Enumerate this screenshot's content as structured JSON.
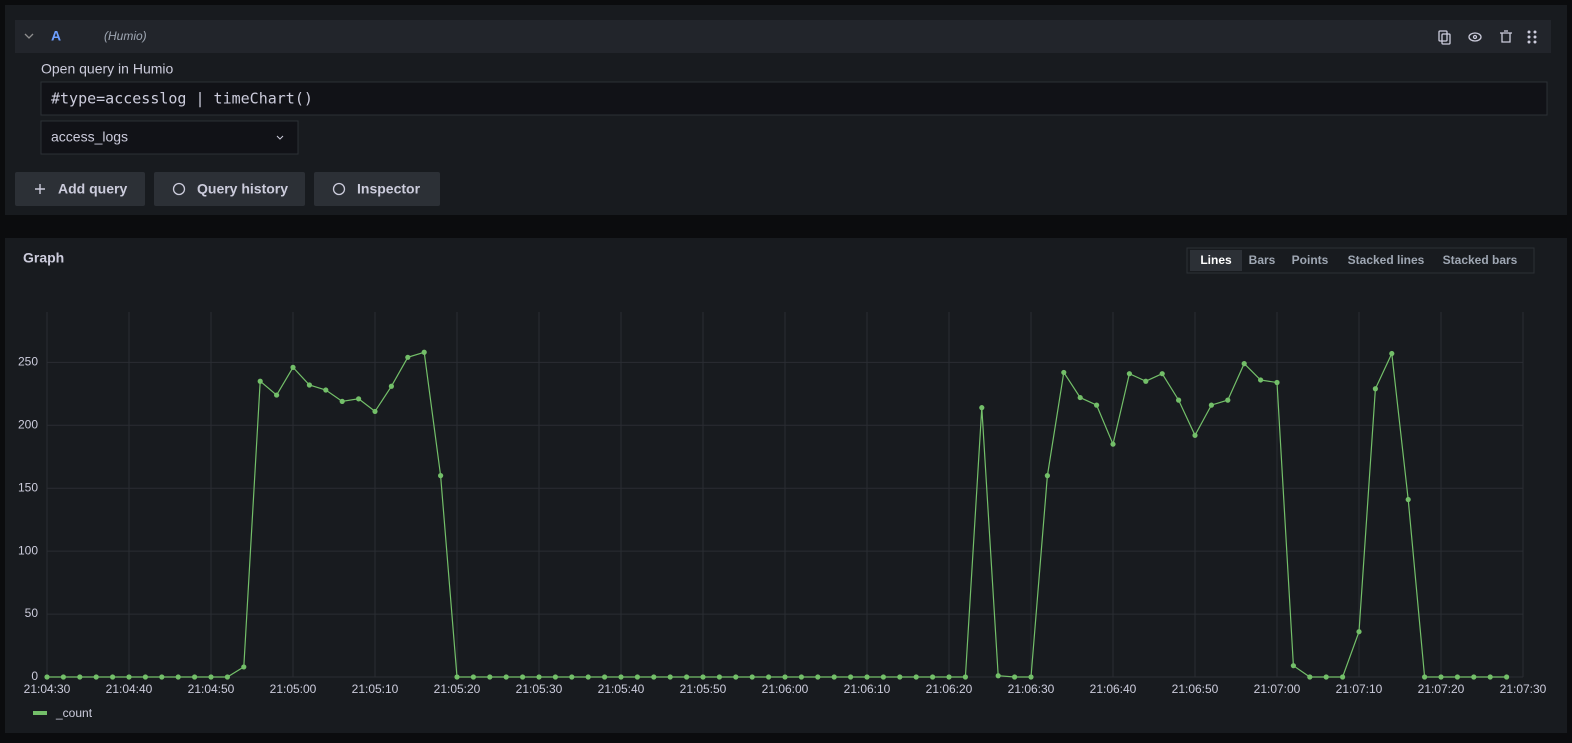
{
  "ui": {
    "query_letter": "A",
    "datasource_name": "(Humio)",
    "open_link": "Open query in Humio",
    "query": "#type=accesslog | timeChart()",
    "repository": "access_logs",
    "buttons": [
      "Add query",
      "Query history",
      "Inspector"
    ],
    "view_modes": [
      "Lines",
      "Bars",
      "Points",
      "Stacked lines",
      "Stacked bars"
    ],
    "active_view_mode": "Lines"
  },
  "chart_data": {
    "type": "line",
    "title": "Graph",
    "x": [
      "21:04:30",
      "21:04:32",
      "21:04:34",
      "21:04:36",
      "21:04:38",
      "21:04:40",
      "21:04:42",
      "21:04:44",
      "21:04:46",
      "21:04:48",
      "21:04:50",
      "21:04:52",
      "21:04:54",
      "21:04:56",
      "21:04:58",
      "21:05:00",
      "21:05:02",
      "21:05:04",
      "21:05:06",
      "21:05:08",
      "21:05:10",
      "21:05:12",
      "21:05:14",
      "21:05:16",
      "21:05:18",
      "21:05:20",
      "21:05:22",
      "21:05:24",
      "21:05:26",
      "21:05:28",
      "21:05:30",
      "21:05:32",
      "21:05:34",
      "21:05:36",
      "21:05:38",
      "21:05:40",
      "21:05:42",
      "21:05:44",
      "21:05:46",
      "21:05:48",
      "21:05:50",
      "21:05:52",
      "21:05:54",
      "21:05:56",
      "21:05:58",
      "21:06:00",
      "21:06:02",
      "21:06:04",
      "21:06:06",
      "21:06:08",
      "21:06:10",
      "21:06:12",
      "21:06:14",
      "21:06:16",
      "21:06:18",
      "21:06:20",
      "21:06:22",
      "21:06:24",
      "21:06:26",
      "21:06:28",
      "21:06:30",
      "21:06:32",
      "21:06:34",
      "21:06:36",
      "21:06:38",
      "21:06:40",
      "21:06:42",
      "21:06:44",
      "21:06:46",
      "21:06:48",
      "21:06:50",
      "21:06:52",
      "21:06:54",
      "21:06:56",
      "21:06:58",
      "21:07:00",
      "21:07:02",
      "21:07:04",
      "21:07:06",
      "21:07:08",
      "21:07:10",
      "21:07:12",
      "21:07:14",
      "21:07:16",
      "21:07:18",
      "21:07:20",
      "21:07:22",
      "21:07:24",
      "21:07:26",
      "21:07:28"
    ],
    "series": [
      {
        "name": "_count",
        "color": "#73bf69",
        "values": [
          0,
          0,
          0,
          0,
          0,
          0,
          0,
          0,
          0,
          0,
          0,
          0,
          8,
          235,
          224,
          246,
          232,
          228,
          219,
          221,
          211,
          231,
          254,
          258,
          160,
          0,
          0,
          0,
          0,
          0,
          0,
          0,
          0,
          0,
          0,
          0,
          0,
          0,
          0,
          0,
          0,
          0,
          0,
          0,
          0,
          0,
          0,
          0,
          0,
          0,
          0,
          0,
          0,
          0,
          0,
          0,
          0,
          214,
          1,
          0,
          0,
          160,
          242,
          222,
          216,
          185,
          241,
          235,
          241,
          220,
          192,
          216,
          220,
          249,
          236,
          234,
          9,
          0,
          0,
          0,
          36,
          229,
          257,
          141,
          0,
          0,
          0,
          0,
          0,
          0
        ]
      }
    ],
    "xlim": [
      "21:04:30",
      "21:07:30"
    ],
    "xticks": [
      "21:04:30",
      "21:04:40",
      "21:04:50",
      "21:05:00",
      "21:05:10",
      "21:05:20",
      "21:05:30",
      "21:05:40",
      "21:05:50",
      "21:06:00",
      "21:06:10",
      "21:06:20",
      "21:06:30",
      "21:06:40",
      "21:06:50",
      "21:07:00",
      "21:07:10",
      "21:07:20",
      "21:07:30"
    ],
    "ylim": [
      0,
      290
    ],
    "yticks": [
      0,
      50,
      100,
      150,
      200,
      250
    ],
    "grid": true
  }
}
